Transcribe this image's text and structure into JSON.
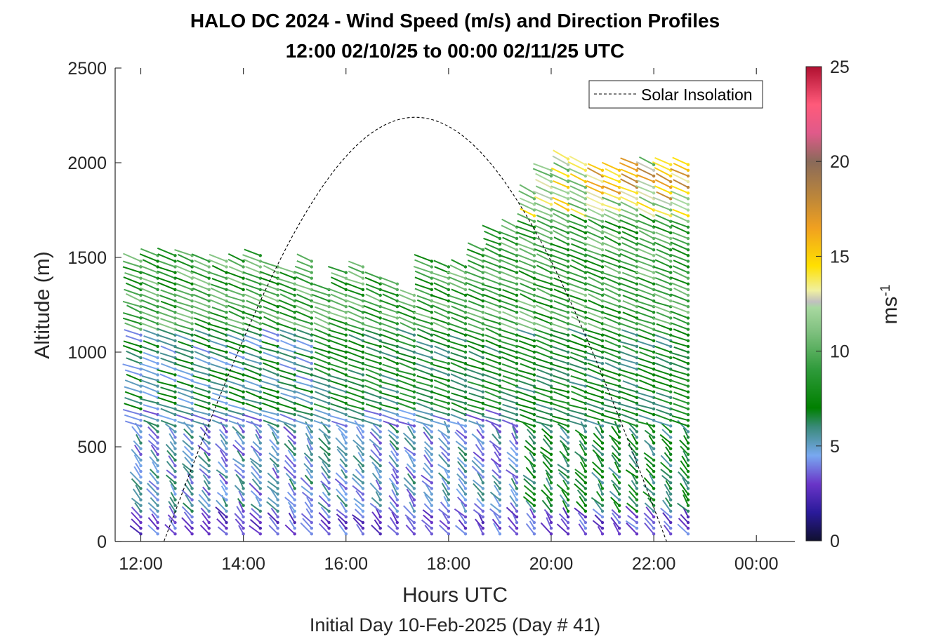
{
  "chart_data": {
    "type": "scatter",
    "title": "HALO DC 2024 - Wind Speed (m/s) and Direction Profiles",
    "subtitle": "12:00 02/10/25 to 00:00 02/11/25  UTC",
    "xlabel": "Hours UTC",
    "ylabel": "Altitude (m)",
    "footer": "Initial Day 10-Feb-2025 (Day # 41)",
    "xlim": [
      11.5,
      24.75
    ],
    "ylim": [
      0,
      2500
    ],
    "x_ticks": [
      12,
      14,
      16,
      18,
      20,
      22,
      24
    ],
    "x_tick_labels": [
      "12:00",
      "14:00",
      "16:00",
      "18:00",
      "20:00",
      "22:00",
      "00:00"
    ],
    "y_ticks": [
      0,
      500,
      1000,
      1500,
      2000,
      2500
    ],
    "y_tick_labels": [
      "0",
      "500",
      "1000",
      "1500",
      "2000",
      "2500"
    ],
    "colorbar": {
      "label": "ms-1",
      "label_main": "ms",
      "label_sup": "-1",
      "range": [
        0,
        25
      ],
      "ticks": [
        0,
        5,
        10,
        15,
        20,
        25
      ],
      "tick_labels": [
        "0",
        "5",
        "10",
        "15",
        "20",
        "25"
      ],
      "stops": [
        [
          0,
          "#101030"
        ],
        [
          1.5,
          "#2a1a9a"
        ],
        [
          3,
          "#6a35c8"
        ],
        [
          4.5,
          "#78a8f0"
        ],
        [
          6,
          "#3a8a7a"
        ],
        [
          7,
          "#008000"
        ],
        [
          9,
          "#2e9a3a"
        ],
        [
          11,
          "#7ec07e"
        ],
        [
          12.3,
          "#a8d8a0"
        ],
        [
          12.6,
          "#c0c0c0"
        ],
        [
          13.2,
          "#f0f0a0"
        ],
        [
          14.5,
          "#ffe000"
        ],
        [
          16.5,
          "#f0a020"
        ],
        [
          18,
          "#c08838"
        ],
        [
          20,
          "#8a6a5a"
        ],
        [
          21.5,
          "#e05a8a"
        ],
        [
          23,
          "#ff5a7a"
        ],
        [
          25,
          "#b01030"
        ]
      ]
    },
    "solar_insolation": {
      "name": "Solar Insolation",
      "sunrise_hour": 12.45,
      "sunset_hour": 22.25,
      "peak_hour": 17.35,
      "peak_altitude_equiv": 2240
    },
    "wind_profiles": [
      {
        "hour": 12.0,
        "top": 1490
      },
      {
        "hour": 12.33,
        "top": 1510
      },
      {
        "hour": 12.67,
        "top": 1520
      },
      {
        "hour": 13.0,
        "top": 1510
      },
      {
        "hour": 13.33,
        "top": 1500
      },
      {
        "hour": 13.67,
        "top": 1480
      },
      {
        "hour": 14.0,
        "top": 1500
      },
      {
        "hour": 14.33,
        "top": 1510
      },
      {
        "hour": 14.67,
        "top": 1470
      },
      {
        "hour": 15.0,
        "top": 1440
      },
      {
        "hour": 15.33,
        "top": 1490
      },
      {
        "hour": 15.67,
        "top": 1340
      },
      {
        "hour": 16.0,
        "top": 1420
      },
      {
        "hour": 16.33,
        "top": 1460
      },
      {
        "hour": 16.67,
        "top": 1390
      },
      {
        "hour": 17.0,
        "top": 1360
      },
      {
        "hour": 17.33,
        "top": 1300
      },
      {
        "hour": 17.67,
        "top": 1480
      },
      {
        "hour": 18.0,
        "top": 1450
      },
      {
        "hour": 18.33,
        "top": 1460
      },
      {
        "hour": 18.67,
        "top": 1550
      },
      {
        "hour": 19.0,
        "top": 1630
      },
      {
        "hour": 19.33,
        "top": 1680
      },
      {
        "hour": 19.67,
        "top": 1850
      },
      {
        "hour": 20.0,
        "top": 1960
      },
      {
        "hour": 20.33,
        "top": 2020
      },
      {
        "hour": 20.67,
        "top": 2010
      },
      {
        "hour": 21.0,
        "top": 1980
      },
      {
        "hour": 21.33,
        "top": 1980
      },
      {
        "hour": 21.67,
        "top": 2000
      },
      {
        "hour": 22.0,
        "top": 2000
      },
      {
        "hour": 22.33,
        "top": 1990
      },
      {
        "hour": 22.67,
        "top": 2000
      }
    ]
  }
}
